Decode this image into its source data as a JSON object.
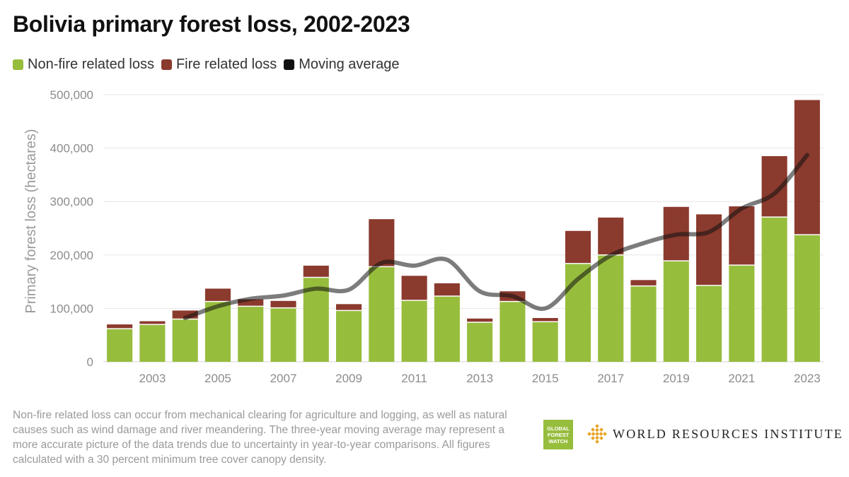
{
  "title": "Bolivia primary forest loss, 2002-2023",
  "legend": {
    "items": [
      {
        "label": "Non-fire related loss",
        "color": "#97bd3d"
      },
      {
        "label": "Fire related loss",
        "color": "#8b3a2e"
      },
      {
        "label": "Moving average",
        "color": "#111111"
      }
    ]
  },
  "footnote": "Non-fire related loss can occur from mechanical clearing for agriculture and logging, as well as natural causes such as wind damage and river meandering. The three-year moving average may represent a more accurate picture of the data trends due to uncertainty in year-to-year comparisons. All figures calculated with a 30 percent minimum tree cover canopy density.",
  "logos": {
    "gfw_lines": [
      "GLOBAL",
      "FOREST",
      "WATCH"
    ],
    "wri": "WORLD RESOURCES INSTITUTE"
  },
  "chart_data": {
    "type": "bar",
    "stacked": true,
    "categories": [
      "2002",
      "2003",
      "2004",
      "2005",
      "2006",
      "2007",
      "2008",
      "2009",
      "2010",
      "2011",
      "2012",
      "2013",
      "2014",
      "2015",
      "2016",
      "2017",
      "2018",
      "2019",
      "2020",
      "2021",
      "2022",
      "2023"
    ],
    "x_tick_labels": [
      "2003",
      "2005",
      "2007",
      "2009",
      "2011",
      "2013",
      "2015",
      "2017",
      "2019",
      "2021",
      "2023"
    ],
    "ylabel": "Primary forest loss (hectares)",
    "ylim": [
      0,
      500000
    ],
    "y_ticks": [
      0,
      100000,
      200000,
      300000,
      400000,
      500000
    ],
    "y_tick_labels": [
      "0",
      "100,000",
      "200,000",
      "300,000",
      "400,000",
      "500,000"
    ],
    "grid": true,
    "series": [
      {
        "name": "Non-fire related loss",
        "color": "#97bd3d",
        "values": [
          62000,
          70000,
          80000,
          113000,
          104000,
          101000,
          158000,
          96000,
          178000,
          115000,
          123000,
          74000,
          113000,
          75000,
          184000,
          200000,
          142000,
          189000,
          143000,
          181000,
          271000,
          238000
        ]
      },
      {
        "name": "Fire related loss",
        "color": "#8b3a2e",
        "values": [
          8000,
          6000,
          16000,
          24000,
          13000,
          13000,
          22000,
          12000,
          89000,
          46000,
          24000,
          7000,
          19000,
          7000,
          61000,
          70000,
          11000,
          101000,
          133000,
          110000,
          114000,
          252000
        ]
      },
      {
        "name": "Moving average",
        "type": "line",
        "color": "#111111",
        "x": [
          "2004",
          "2005",
          "2006",
          "2007",
          "2008",
          "2009",
          "2010",
          "2011",
          "2012",
          "2013",
          "2014",
          "2015",
          "2016",
          "2017",
          "2018",
          "2019",
          "2020",
          "2021",
          "2022",
          "2023"
        ],
        "values": [
          82000,
          104000,
          118000,
          124000,
          137000,
          135000,
          185000,
          180000,
          191000,
          132000,
          123000,
          100000,
          155000,
          199000,
          222000,
          238000,
          243000,
          287000,
          315000,
          387000
        ]
      }
    ]
  }
}
